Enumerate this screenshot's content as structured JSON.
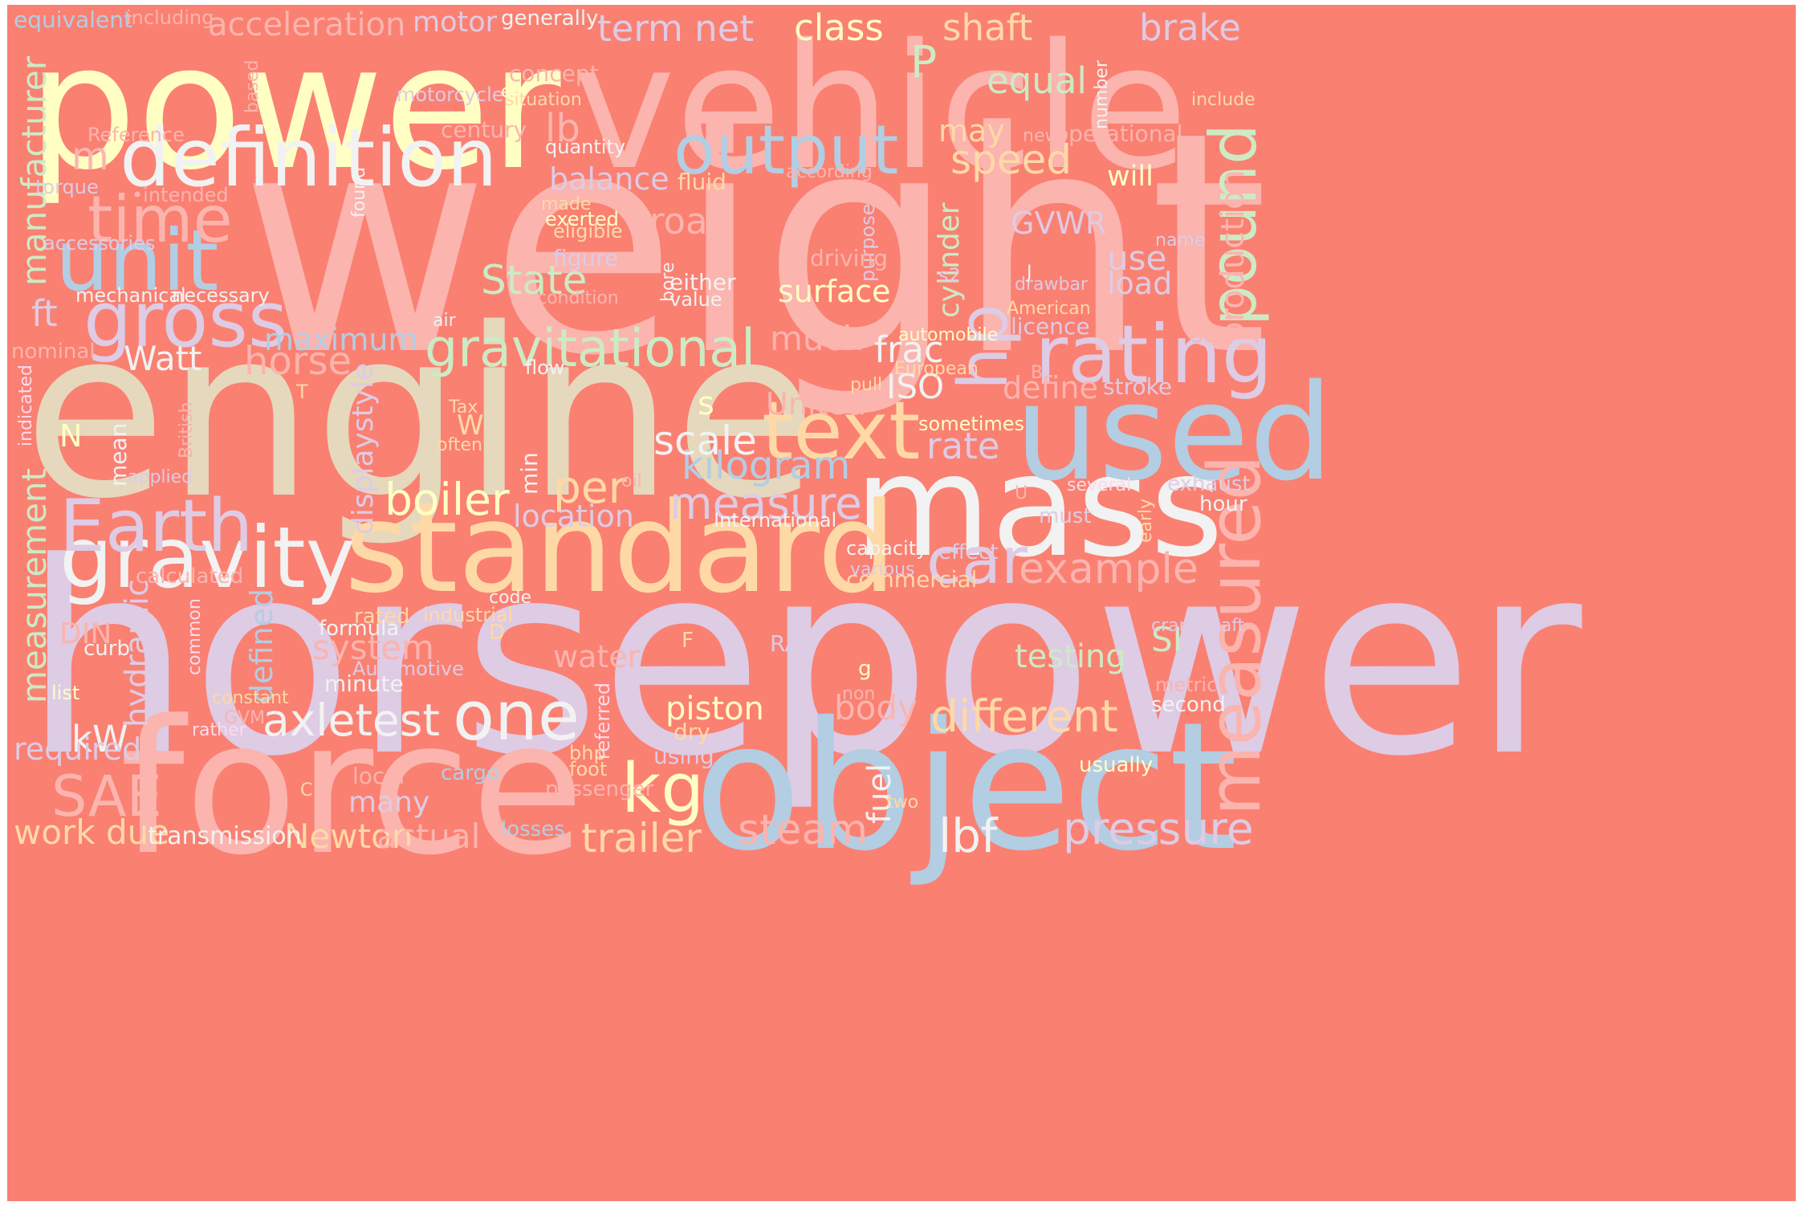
{
  "background": "#FA8072",
  "palette": {
    "cream": "#FFFFC4",
    "pink": "#FBB4AE",
    "lavender": "#DECBE4",
    "blue": "#B3CDE3",
    "green": "#CCEBC5",
    "peach": "#FED9A6",
    "tan": "#E5D8BD",
    "rose": "#FDDAEC",
    "white": "#F2F2F2"
  },
  "words": [
    {
      "text": "weight",
      "color": "#FBB4AE"
    },
    {
      "text": "horsepower",
      "color": "#DECBE4"
    },
    {
      "text": "engine",
      "color": "#E5D8BD"
    },
    {
      "text": "power",
      "color": "#FFFFC4"
    },
    {
      "text": "vehicle",
      "color": "#FBB4AE"
    },
    {
      "text": "force",
      "color": "#FBB4AE"
    },
    {
      "text": "object",
      "color": "#B3CDE3"
    },
    {
      "text": "mass",
      "color": "#F2F2F2"
    },
    {
      "text": "standard",
      "color": "#FED9A6"
    },
    {
      "text": "used",
      "color": "#B3CDE3"
    },
    {
      "text": "definition",
      "color": "#F2F2F2"
    },
    {
      "text": "gravity",
      "color": "#F2F2F2"
    },
    {
      "text": "measured",
      "color": "#FBB4AE"
    },
    {
      "text": "rating",
      "color": "#DECBE4"
    },
    {
      "text": "text",
      "color": "#FED9A6"
    },
    {
      "text": "unit",
      "color": "#B3CDE3"
    },
    {
      "text": "output",
      "color": "#B3CDE3"
    },
    {
      "text": "gross",
      "color": "#DECBE4"
    },
    {
      "text": "gravitational",
      "color": "#CCEBC5"
    },
    {
      "text": "Earth",
      "color": "#DECBE4"
    },
    {
      "text": "pound",
      "color": "#CCEBC5"
    },
    {
      "text": "time",
      "color": "#FBB4AE"
    },
    {
      "text": "one",
      "color": "#F2F2F2"
    },
    {
      "text": "kg",
      "color": "#FFFFC4"
    },
    {
      "text": "car",
      "color": "#DECBE4"
    },
    {
      "text": "SAE",
      "color": "#FBB4AE"
    },
    {
      "text": "hp",
      "color": "#DECBE4"
    },
    {
      "text": "axletest",
      "color": "#F2F2F2"
    },
    {
      "text": "different",
      "color": "#FED9A6"
    },
    {
      "text": "pressure",
      "color": "#DECBE4"
    },
    {
      "text": "example",
      "color": "#FBB4AE"
    },
    {
      "text": "measurement",
      "color": "#CCEBC5"
    },
    {
      "text": "manufacturer",
      "color": "#CCEBC5"
    },
    {
      "text": "steam",
      "color": "#FBB4AE"
    },
    {
      "text": "trailer",
      "color": "#FED9A6"
    },
    {
      "text": "lbf",
      "color": "#F2F2F2"
    },
    {
      "text": "boiler",
      "color": "#FFFFC4"
    },
    {
      "text": "per",
      "color": "#FED9A6"
    },
    {
      "text": "measure",
      "color": "#DECBE4"
    },
    {
      "text": "kilogram",
      "color": "#B3CDE3"
    },
    {
      "text": "scale",
      "color": "#F2F2F2"
    },
    {
      "text": "speed",
      "color": "#FED9A6"
    },
    {
      "text": "P",
      "color": "#CCEBC5"
    },
    {
      "text": "Newton",
      "color": "#FED9A6"
    },
    {
      "text": "actual",
      "color": "#FBB4AE"
    },
    {
      "text": "work due",
      "color": "#FED9A6"
    },
    {
      "text": "kW",
      "color": "#F2F2F2"
    },
    {
      "text": "horse",
      "color": "#FBB4AE"
    },
    {
      "text": "Watt",
      "color": "#F2F2F2"
    },
    {
      "text": "ft",
      "color": "#DECBE4"
    },
    {
      "text": "term net",
      "color": "#DECBE4"
    },
    {
      "text": "class",
      "color": "#FFFFC4"
    },
    {
      "text": "shaft",
      "color": "#FED9A6"
    },
    {
      "text": "brake",
      "color": "#DECBE4"
    },
    {
      "text": "equal",
      "color": "#CCEBC5"
    },
    {
      "text": "lb",
      "color": "#FBB4AE"
    },
    {
      "text": "road",
      "color": "#FBB4AE"
    },
    {
      "text": "State",
      "color": "#CCEBC5"
    },
    {
      "text": "balance",
      "color": "#DECBE4"
    },
    {
      "text": "surface",
      "color": "#FFFFC4"
    },
    {
      "text": "load",
      "color": "#DECBE4"
    },
    {
      "text": "use",
      "color": "#DECBE4"
    },
    {
      "text": "GVWR",
      "color": "#DECBE4"
    },
    {
      "text": "production",
      "color": "#FBB4AE"
    },
    {
      "text": "cylinder",
      "color": "#CCEBC5"
    },
    {
      "text": "frac",
      "color": "#F2F2F2"
    },
    {
      "text": "ISO",
      "color": "#F2F2F2"
    },
    {
      "text": "rate",
      "color": "#DECBE4"
    },
    {
      "text": "define",
      "color": "#FBB4AE"
    },
    {
      "text": "piston",
      "color": "#FFFFC4"
    },
    {
      "text": "body",
      "color": "#FBB4AE"
    },
    {
      "text": "location",
      "color": "#DECBE4"
    },
    {
      "text": "testing",
      "color": "#CCEBC5"
    },
    {
      "text": "SI",
      "color": "#CCEBC5"
    },
    {
      "text": "system",
      "color": "#FBB4AE"
    },
    {
      "text": "water",
      "color": "#FBB4AE"
    },
    {
      "text": "maximum",
      "color": "#B3CDE3"
    },
    {
      "text": "much",
      "color": "#FBB4AE"
    },
    {
      "text": "United",
      "color": "#FBB4AE"
    },
    {
      "text": "hydraulic",
      "color": "#DECBE4"
    },
    {
      "text": "defined",
      "color": "#B3CDE3"
    },
    {
      "text": "displaystyle",
      "color": "#DECBE4"
    },
    {
      "text": "required",
      "color": "#DECBE4"
    },
    {
      "text": "fuel",
      "color": "#F2F2F2"
    },
    {
      "text": "may",
      "color": "#FED9A6"
    },
    {
      "text": "will",
      "color": "#FFFFC4"
    },
    {
      "text": "m",
      "color": "#FBB4AE"
    },
    {
      "text": "s",
      "color": "#FFFFC4"
    },
    {
      "text": "N",
      "color": "#FFFFC4"
    },
    {
      "text": "W",
      "color": "#FED9A6"
    },
    {
      "text": "DIN",
      "color": "#FBB4AE"
    },
    {
      "text": "many",
      "color": "#DECBE4"
    },
    {
      "text": "transmission",
      "color": "#F2F2F2"
    },
    {
      "text": "losses",
      "color": "#B3CDE3"
    },
    {
      "text": "minute",
      "color": "#F2F2F2"
    },
    {
      "text": "hour",
      "color": "#F2F2F2"
    },
    {
      "text": "exhaust",
      "color": "#DECBE4"
    },
    {
      "text": "must",
      "color": "#DECBE4"
    },
    {
      "text": "several",
      "color": "#FDDAEC"
    },
    {
      "text": "commercial",
      "color": "#FED9A6"
    },
    {
      "text": "capacity",
      "color": "#F2F2F2"
    },
    {
      "text": "effect",
      "color": "#DECBE4"
    },
    {
      "text": "various",
      "color": "#DECBE4"
    },
    {
      "text": "operational",
      "color": "#FBB4AE"
    },
    {
      "text": "include",
      "color": "#FED9A6"
    },
    {
      "text": "sometimes",
      "color": "#FFFFC4"
    },
    {
      "text": "stroke",
      "color": "#DECBE4"
    },
    {
      "text": "European",
      "color": "#FED9A6"
    },
    {
      "text": "automobile",
      "color": "#FFFFC4"
    },
    {
      "text": "licence",
      "color": "#DECBE4"
    },
    {
      "text": "American",
      "color": "#FED9A6"
    },
    {
      "text": "drawbar",
      "color": "#DECBE4"
    },
    {
      "text": "name",
      "color": "#DECBE4"
    },
    {
      "text": "see",
      "color": "#FBB4AE"
    },
    {
      "text": "crankshaft",
      "color": "#DECBE4"
    },
    {
      "text": "metric",
      "color": "#FBB4AE"
    },
    {
      "text": "second",
      "color": "#F2F2F2"
    },
    {
      "text": "usually",
      "color": "#FFFFC4"
    },
    {
      "text": "RAC",
      "color": "#DECBE4"
    },
    {
      "text": "F",
      "color": "#FED9A6"
    },
    {
      "text": "g",
      "color": "#FFFFC4"
    },
    {
      "text": "non",
      "color": "#FBB4AE"
    },
    {
      "text": "two",
      "color": "#FED9A6"
    },
    {
      "text": "cargo",
      "color": "#B3CDE3"
    },
    {
      "text": "using",
      "color": "#DECBE4"
    },
    {
      "text": "dry",
      "color": "#FED9A6"
    },
    {
      "text": "passenger",
      "color": "#FBB4AE"
    },
    {
      "text": "foot",
      "color": "#FED9A6"
    },
    {
      "text": "bhp",
      "color": "#FED9A6"
    },
    {
      "text": "referred",
      "color": "#FDDAEC"
    },
    {
      "text": "local",
      "color": "#FBB4AE"
    },
    {
      "text": "C",
      "color": "#FED9A6"
    },
    {
      "text": "Automotive",
      "color": "#DECBE4"
    },
    {
      "text": "formula",
      "color": "#F2F2F2"
    },
    {
      "text": "rated",
      "color": "#FED9A6"
    },
    {
      "text": "industrial",
      "color": "#FED9A6"
    },
    {
      "text": "code",
      "color": "#F2F2F2"
    },
    {
      "text": "D",
      "color": "#FED9A6"
    },
    {
      "text": "International",
      "color": "#F2F2F2"
    },
    {
      "text": "min",
      "color": "#F2F2F2"
    },
    {
      "text": "oil",
      "color": "#FBB4AE"
    },
    {
      "text": "often",
      "color": "#FED9A6"
    },
    {
      "text": "Tax",
      "color": "#FED9A6"
    },
    {
      "text": "U",
      "color": "#FBB4AE"
    },
    {
      "text": "early",
      "color": "#FED9A6"
    },
    {
      "text": "B",
      "color": "#FBB4AE"
    },
    {
      "text": "T",
      "color": "#FED9A6"
    },
    {
      "text": "pull",
      "color": "#FED9A6"
    },
    {
      "text": "flow",
      "color": "#F2F2F2"
    },
    {
      "text": "air",
      "color": "#F2F2F2"
    },
    {
      "text": "value",
      "color": "#F2F2F2"
    },
    {
      "text": "either",
      "color": "#F2F2F2"
    },
    {
      "text": "condition",
      "color": "#FBB4AE"
    },
    {
      "text": "s2",
      "color": "#DECBE4"
    },
    {
      "text": "J",
      "color": "#F2F2F2"
    },
    {
      "text": "bore",
      "color": "#F2F2F2"
    },
    {
      "text": "purpose",
      "color": "#DECBE4"
    },
    {
      "text": "driving",
      "color": "#FBB4AE"
    },
    {
      "text": "figure",
      "color": "#DECBE4"
    },
    {
      "text": "eligible",
      "color": "#FED9A6"
    },
    {
      "text": "exerted",
      "color": "#FFFFC4"
    },
    {
      "text": "made",
      "color": "#FED9A6"
    },
    {
      "text": "fluid",
      "color": "#FED9A6"
    },
    {
      "text": "according",
      "color": "#FBB4AE"
    },
    {
      "text": "new",
      "color": "#FBB4AE"
    },
    {
      "text": "quantity",
      "color": "#F2F2F2"
    },
    {
      "text": "century",
      "color": "#FBB4AE"
    },
    {
      "text": "situation",
      "color": "#FED9A6"
    },
    {
      "text": "concept",
      "color": "#FBB4AE"
    },
    {
      "text": "motorcycle",
      "color": "#DECBE4"
    },
    {
      "text": "e",
      "color": "#FFFFC4"
    },
    {
      "text": "number",
      "color": "#F2F2F2"
    },
    {
      "text": "found",
      "color": "#F2F2F2"
    },
    {
      "text": "based",
      "color": "#FBB4AE"
    },
    {
      "text": "Reference",
      "color": "#FBB4AE"
    },
    {
      "text": "torque",
      "color": "#DECBE4"
    },
    {
      "text": "•intended",
      "color": "#FBB4AE"
    },
    {
      "text": "accessories",
      "color": "#DECBE4"
    },
    {
      "text": "mechanical",
      "color": "#F2F2F2"
    },
    {
      "text": "necessary",
      "color": "#F2F2F2"
    },
    {
      "text": "nominal",
      "color": "#FBB4AE"
    },
    {
      "text": "indicated",
      "color": "#FDDAEC"
    },
    {
      "text": "British",
      "color": "#FBB4AE"
    },
    {
      "text": "mean",
      "color": "#F2F2F2"
    },
    {
      "text": "applied",
      "color": "#DECBE4"
    },
    {
      "text": "calculated",
      "color": "#FBB4AE"
    },
    {
      "text": "common",
      "color": "#FDDAEC"
    },
    {
      "text": "curb",
      "color": "#F2F2F2"
    },
    {
      "text": "constant",
      "color": "#FED9A6"
    },
    {
      "text": "list",
      "color": "#FFFFC4"
    },
    {
      "text": "GVM",
      "color": "#FBB4AE"
    },
    {
      "text": "rather",
      "color": "#FDDAEC"
    },
    {
      "text": "equivalent",
      "color": "#B3CDE3"
    },
    {
      "text": "including",
      "color": "#FBB4AE"
    },
    {
      "text": "acceleration",
      "color": "#FBB4AE"
    },
    {
      "text": "motor",
      "color": "#DECBE4"
    },
    {
      "text": "generally",
      "color": "#F2F2F2"
    }
  ]
}
